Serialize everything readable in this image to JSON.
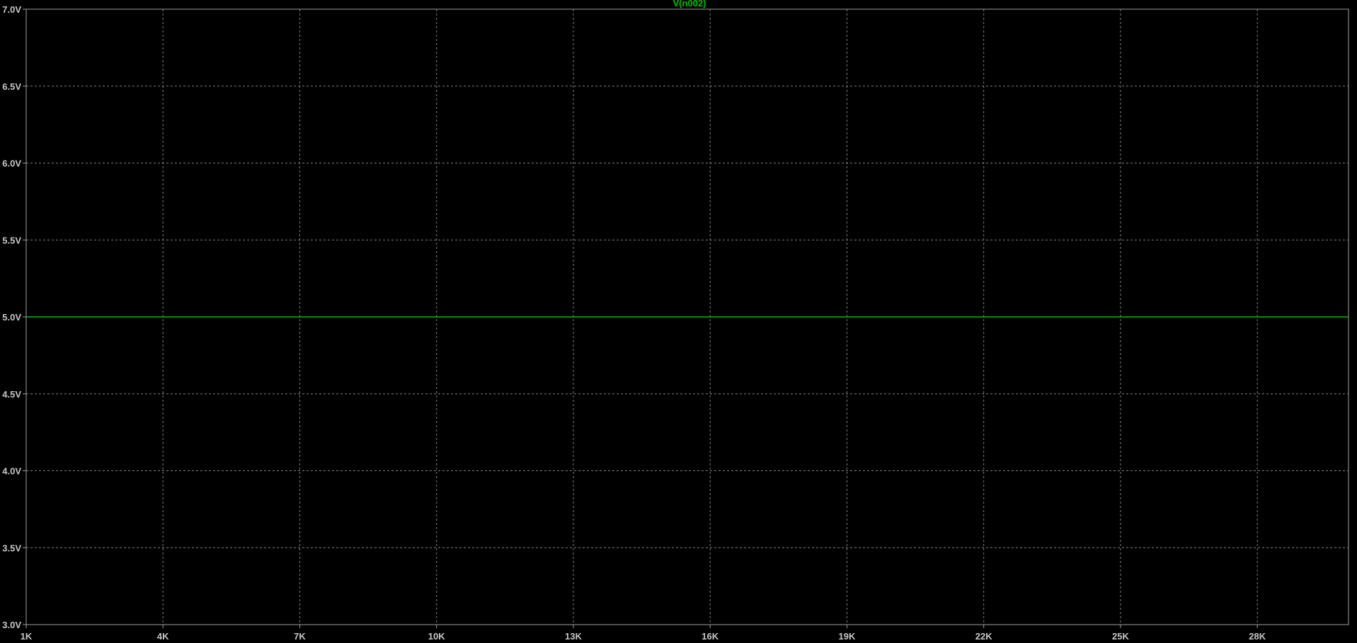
{
  "colors": {
    "background": "#000000",
    "frame": "#a0a0a0",
    "grid": "#808080",
    "tick_text": "#c8c8c8",
    "trace": "#00c000"
  },
  "chart_data": {
    "type": "line",
    "grid": true,
    "xlim": [
      1000,
      30000
    ],
    "ylim": [
      3.0,
      7.0
    ],
    "x_ticks": [
      {
        "value": 1000,
        "label": "1K"
      },
      {
        "value": 4000,
        "label": "4K"
      },
      {
        "value": 7000,
        "label": "7K"
      },
      {
        "value": 10000,
        "label": "10K"
      },
      {
        "value": 13000,
        "label": "13K"
      },
      {
        "value": 16000,
        "label": "16K"
      },
      {
        "value": 19000,
        "label": "19K"
      },
      {
        "value": 22000,
        "label": "22K"
      },
      {
        "value": 25000,
        "label": "25K"
      },
      {
        "value": 28000,
        "label": "28K"
      }
    ],
    "y_ticks": [
      {
        "value": 3.0,
        "label": "3.0V"
      },
      {
        "value": 3.5,
        "label": "3.5V"
      },
      {
        "value": 4.0,
        "label": "4.0V"
      },
      {
        "value": 4.5,
        "label": "4.5V"
      },
      {
        "value": 5.0,
        "label": "5.0V"
      },
      {
        "value": 5.5,
        "label": "5.5V"
      },
      {
        "value": 6.0,
        "label": "6.0V"
      },
      {
        "value": 6.5,
        "label": "6.5V"
      },
      {
        "value": 7.0,
        "label": "7.0V"
      }
    ],
    "series": [
      {
        "name": "V(n002)",
        "color": "#00c000",
        "x": [
          1000,
          30000
        ],
        "y": [
          5.0,
          5.0
        ]
      }
    ]
  }
}
